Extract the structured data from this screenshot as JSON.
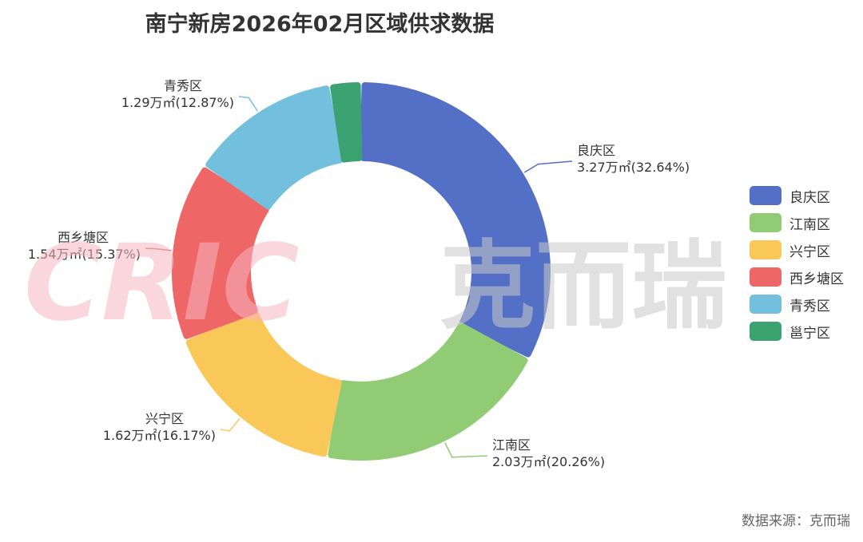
{
  "chart_data": {
    "type": "pie",
    "style": "donut",
    "title": "南宁新房2026年02月区域供求数据",
    "slices": [
      {
        "name": "良庆区",
        "value": 3.27,
        "percent": 32.64,
        "label_value": "3.27万㎡(32.64%)",
        "color": "#5470c6"
      },
      {
        "name": "江南区",
        "value": 2.03,
        "percent": 20.26,
        "label_value": "2.03万㎡(20.26%)",
        "color": "#91cc75"
      },
      {
        "name": "兴宁区",
        "value": 1.62,
        "percent": 16.17,
        "label_value": "1.62万㎡(16.17%)",
        "color": "#fac858"
      },
      {
        "name": "西乡塘区",
        "value": 1.54,
        "percent": 15.37,
        "label_value": "1.54万㎡(15.37%)",
        "color": "#ee6666"
      },
      {
        "name": "青秀区",
        "value": 1.29,
        "percent": 12.87,
        "label_value": "1.29万㎡(12.87%)",
        "color": "#73c0de"
      },
      {
        "name": "邕宁区",
        "value": 0.27,
        "percent": 2.69,
        "label_value": "",
        "color": "#3ba272"
      }
    ],
    "legend_position": "right"
  },
  "source_note": "数据来源：克而瑞",
  "watermark": {
    "logo_text": "CRIC",
    "brand_text": "克而瑞"
  }
}
